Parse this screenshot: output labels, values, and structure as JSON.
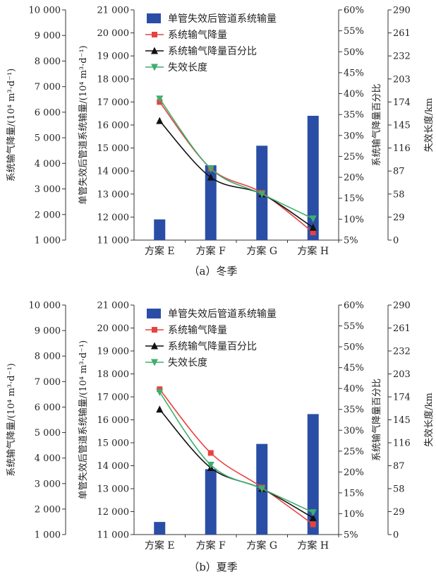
{
  "chart_data": [
    {
      "type": "bar",
      "caption": "（a）冬季",
      "categories": [
        "方案 E",
        "方案 F",
        "方案 G",
        "方案 H"
      ],
      "axes": {
        "y1": {
          "label": "系统输气降量/(10⁴ m³·d⁻¹)",
          "ylim": [
            1000,
            10000
          ],
          "ticks": [
            "1 000",
            "2 000",
            "3 000",
            "4 000",
            "5 000",
            "6 000",
            "7 000",
            "8 000",
            "9 000",
            "10 000"
          ]
        },
        "y2": {
          "label": "单管失效后管道系统输量/(10⁴ m³·d⁻¹)",
          "ylim": [
            11000,
            21000
          ],
          "ticks": [
            "11 000",
            "12 000",
            "13 000",
            "14 000",
            "15 000",
            "16 000",
            "17 000",
            "18 000",
            "19 000",
            "20 000",
            "21 000"
          ]
        },
        "y3": {
          "label": "系统输气降量百分比",
          "ylim": [
            5,
            60
          ],
          "ticks": [
            "5%",
            "10%",
            "15%",
            "20%",
            "25%",
            "30%",
            "35%",
            "40%",
            "45%",
            "50%",
            "55%",
            "60%"
          ]
        },
        "y4": {
          "label": "失效长度/km",
          "ylim": [
            0,
            290
          ],
          "ticks": [
            "0",
            "29",
            "58",
            "87",
            "116",
            "145",
            "174",
            "203",
            "232",
            "261",
            "290"
          ]
        }
      },
      "legend": [
        "单管失效后管道系统输量",
        "系统输气降量",
        "系统输气降量百分比",
        "失效长度"
      ],
      "series": [
        {
          "name": "单管失效后管道系统输量",
          "kind": "bar",
          "axis": "y2",
          "color": "#2a4ea6",
          "values": [
            11900,
            14250,
            15100,
            16400
          ]
        },
        {
          "name": "系统输气降量",
          "kind": "line",
          "axis": "y1",
          "color": "#e8423f",
          "marker": "square",
          "values": [
            6400,
            3800,
            2850,
            1300
          ]
        },
        {
          "name": "系统输气降量百分比",
          "kind": "line",
          "axis": "y3",
          "color": "#111111",
          "marker": "triangle-up",
          "values": [
            33.5,
            20,
            16,
            8
          ]
        },
        {
          "name": "失效长度",
          "kind": "line",
          "axis": "y4",
          "color": "#3fae6e",
          "marker": "triangle-down",
          "values": [
            178,
            90,
            58,
            27
          ]
        }
      ]
    },
    {
      "type": "bar",
      "caption": "（b）夏季",
      "categories": [
        "方案 E",
        "方案 F",
        "方案 G",
        "方案 H"
      ],
      "axes": {
        "y1": {
          "label": "系统输气降量/(10⁴ m³·d⁻¹)",
          "ylim": [
            1000,
            10000
          ],
          "ticks": [
            "1 000",
            "2 000",
            "3 000",
            "4 000",
            "5 000",
            "6 000",
            "7 000",
            "8 000",
            "9 000",
            "10 000"
          ]
        },
        "y2": {
          "label": "单管失效后管道系统输量/(10⁴ m³·d⁻¹)",
          "ylim": [
            11000,
            21000
          ],
          "ticks": [
            "11 000",
            "12 000",
            "13 000",
            "14 000",
            "15 000",
            "16 000",
            "17 000",
            "18 000",
            "19 000",
            "20 000",
            "21 000"
          ]
        },
        "y3": {
          "label": "系统输气降量百分比",
          "ylim": [
            5,
            60
          ],
          "ticks": [
            "5%",
            "10%",
            "15%",
            "20%",
            "25%",
            "30%",
            "35%",
            "40%",
            "45%",
            "50%",
            "55%",
            "60%"
          ]
        },
        "y4": {
          "label": "失效长度/km",
          "ylim": [
            0,
            290
          ],
          "ticks": [
            "0",
            "29",
            "58",
            "87",
            "116",
            "145",
            "174",
            "203",
            "232",
            "261",
            "290"
          ]
        }
      },
      "legend": [
        "单管失效后管道系统输量",
        "系统输气降量",
        "系统输气降量百分比",
        "失效长度"
      ],
      "series": [
        {
          "name": "单管失效后管道系统输量",
          "kind": "bar",
          "axis": "y2",
          "color": "#2a4ea6",
          "values": [
            11550,
            13850,
            14950,
            16250
          ]
        },
        {
          "name": "系统输气降量",
          "kind": "line",
          "axis": "y1",
          "color": "#e8423f",
          "marker": "square",
          "values": [
            6700,
            4200,
            2850,
            1400
          ]
        },
        {
          "name": "系统输气降量百分比",
          "kind": "line",
          "axis": "y3",
          "color": "#111111",
          "marker": "triangle-up",
          "values": [
            35,
            21,
            16,
            9
          ]
        },
        {
          "name": "失效长度",
          "kind": "line",
          "axis": "y4",
          "color": "#3fae6e",
          "marker": "triangle-down",
          "values": [
            180,
            88,
            58,
            28
          ]
        }
      ]
    }
  ]
}
